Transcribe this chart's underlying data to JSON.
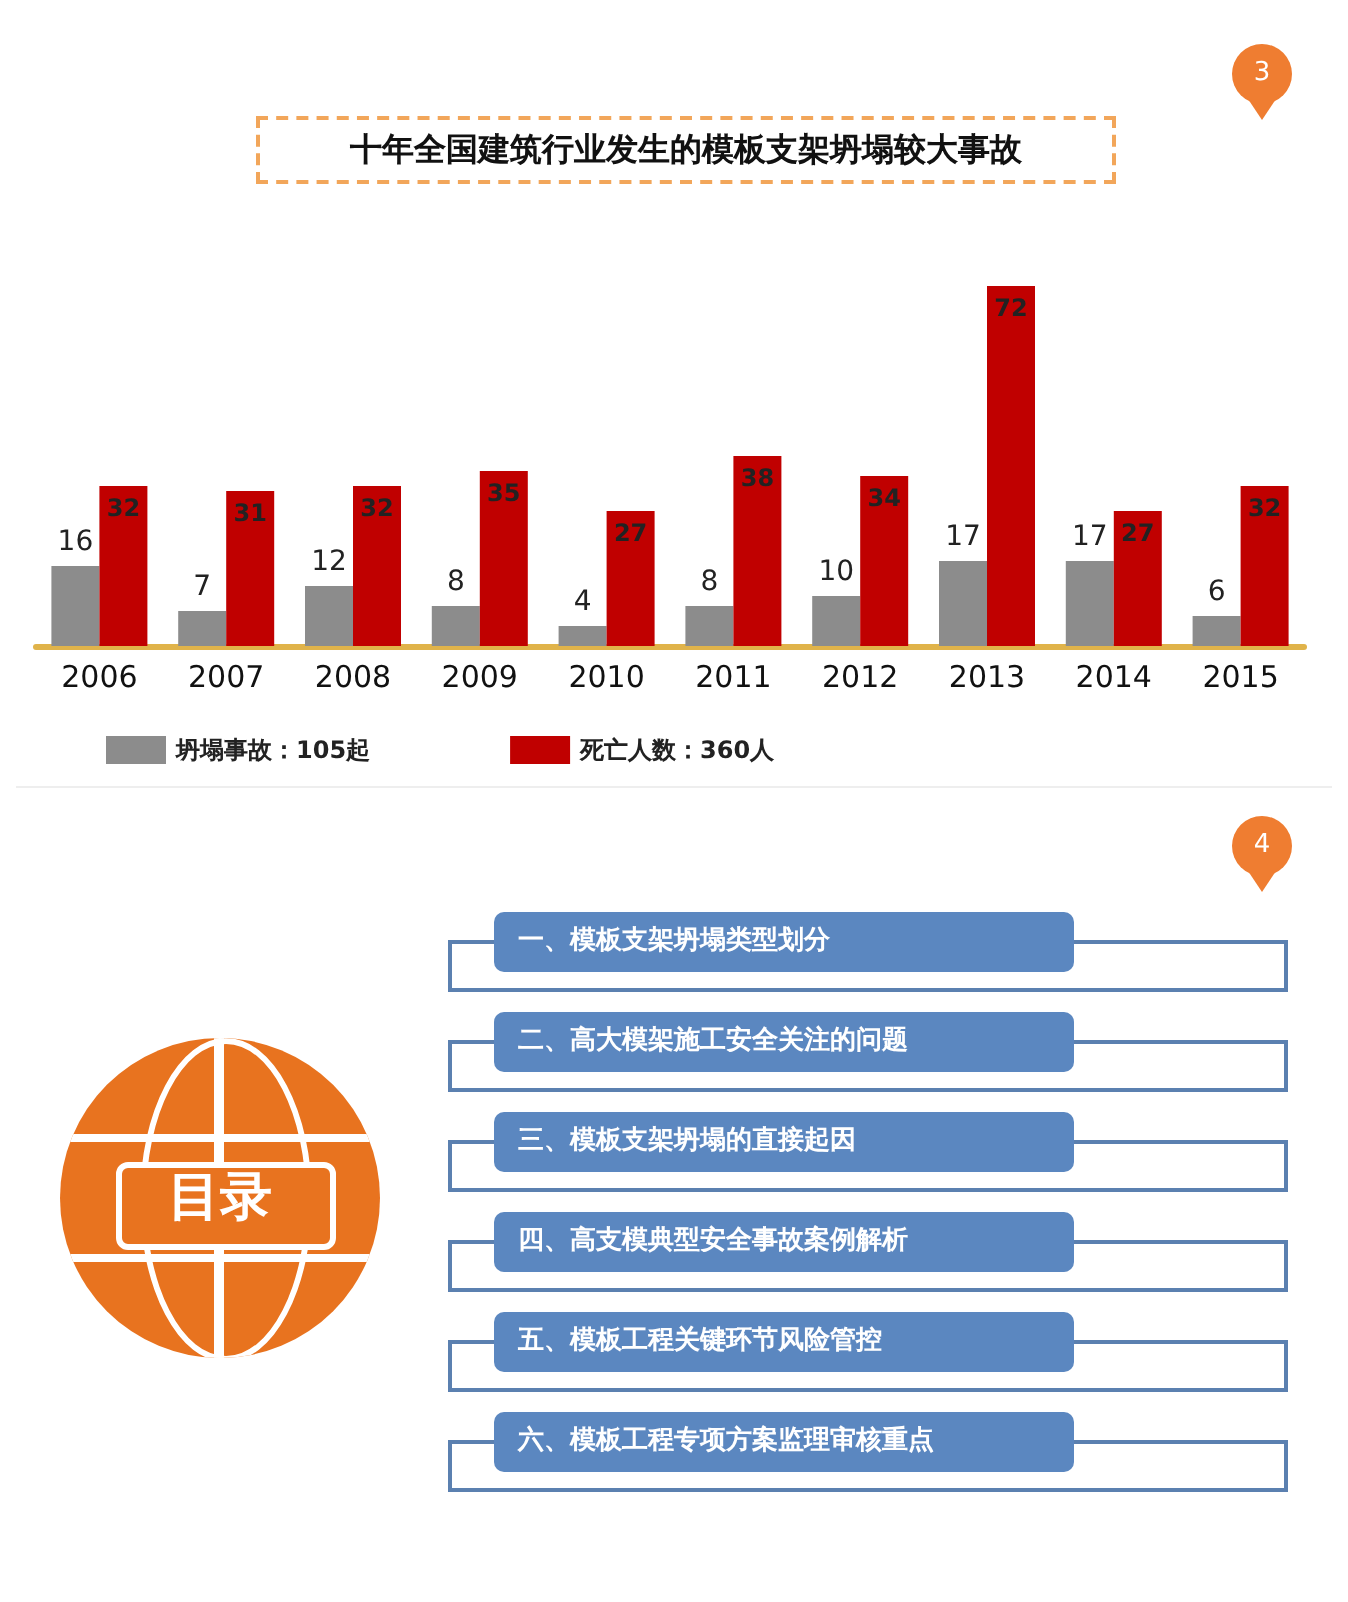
{
  "chart_data": [
    {
      "type": "bar",
      "title": "十年全国建筑行业发生的模板支架坍塌较大事故",
      "categories": [
        "2006",
        "2007",
        "2008",
        "2009",
        "2010",
        "2011",
        "2012",
        "2013",
        "2014",
        "2015"
      ],
      "series": [
        {
          "name": "坍塌事故：105起",
          "color": "#8c8c8c",
          "values": [
            16,
            7,
            12,
            8,
            4,
            8,
            10,
            17,
            17,
            6
          ]
        },
        {
          "name": "死亡人数：360人",
          "color": "#c00000",
          "values": [
            32,
            31,
            32,
            35,
            27,
            38,
            34,
            72,
            27,
            32
          ]
        }
      ],
      "tick_labels": "x",
      "data_labels": true,
      "legend": "bottom left",
      "grid": false,
      "annotations": [
        "3"
      ]
    },
    {
      "type": "other",
      "title": "目录",
      "annotations": [
        "一、模板支架坍塌类型划分",
        "二、高大模架施工安全关注的问题",
        "三、模板支架坍塌的直接起因",
        "四、高支模典型安全事故案例解析",
        "五、模板工程关键环节风险管控",
        "六、模板工程专项方案监理审核重点",
        "4"
      ]
    }
  ]
}
